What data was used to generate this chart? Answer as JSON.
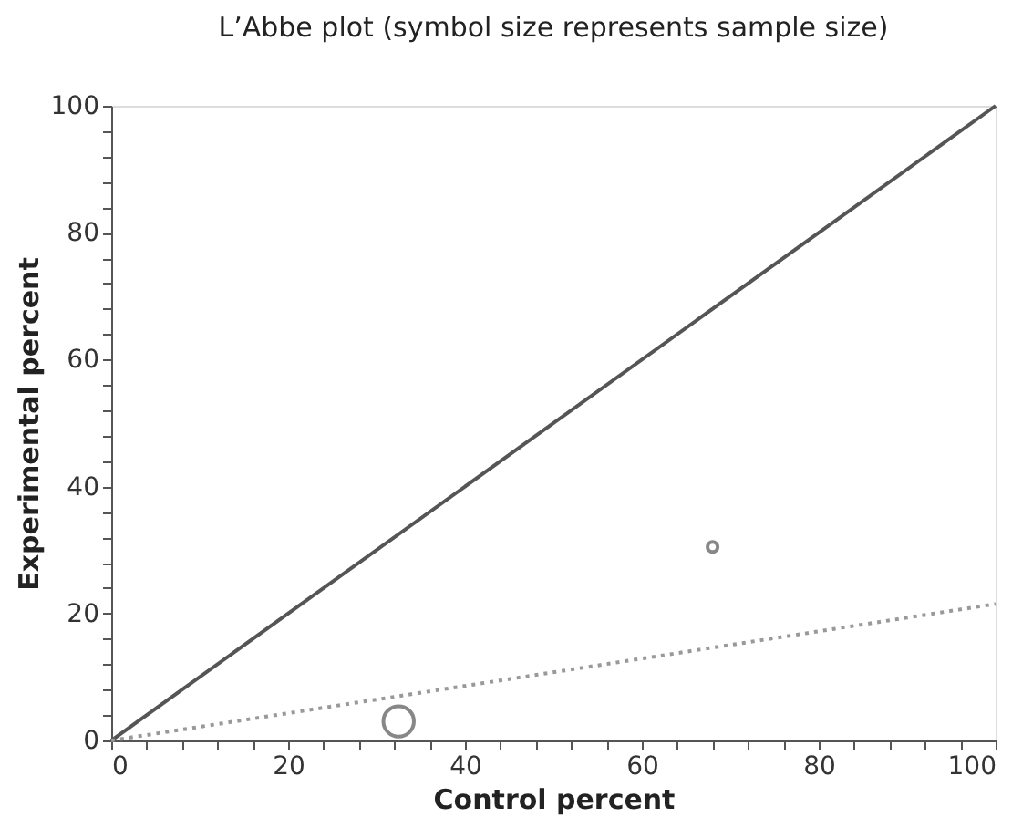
{
  "chart_data": {
    "type": "bubble",
    "title": "L’Abbe plot (symbol size represents sample size)",
    "xlabel": "Control percent",
    "ylabel": "Experimental percent",
    "xlim": [
      0,
      100
    ],
    "ylim": [
      0,
      100
    ],
    "xticks": [
      0,
      {
        "value": 4,
        "label": null
      },
      {
        "value": 8,
        "label": null
      },
      {
        "value": 12,
        "label": null
      },
      {
        "value": 16,
        "label": null
      },
      20,
      {
        "value": 24,
        "label": null
      },
      {
        "value": 28,
        "label": null
      },
      {
        "value": 32,
        "label": null
      },
      {
        "value": 36,
        "label": null
      },
      40,
      {
        "value": 44,
        "label": null
      },
      {
        "value": 48,
        "label": null
      },
      {
        "value": 52,
        "label": null
      },
      {
        "value": 56,
        "label": null
      },
      60,
      {
        "value": 64,
        "label": null
      },
      {
        "value": 68,
        "label": null
      },
      {
        "value": 72,
        "label": null
      },
      {
        "value": 76,
        "label": null
      },
      80,
      {
        "value": 84,
        "label": null
      },
      {
        "value": 88,
        "label": null
      },
      {
        "value": 92,
        "label": null
      },
      {
        "value": 96,
        "label": null
      },
      100
    ],
    "yticks": [
      0,
      {
        "value": 4,
        "label": null
      },
      {
        "value": 8,
        "label": null
      },
      {
        "value": 12,
        "label": null
      },
      {
        "value": 16,
        "label": null
      },
      20,
      {
        "value": 24,
        "label": null
      },
      {
        "value": 28,
        "label": null
      },
      {
        "value": 32,
        "label": null
      },
      {
        "value": 36,
        "label": null
      },
      40,
      {
        "value": 44,
        "label": null
      },
      {
        "value": 48,
        "label": null
      },
      {
        "value": 52,
        "label": null
      },
      {
        "value": 56,
        "label": null
      },
      60,
      {
        "value": 64,
        "label": null
      },
      {
        "value": 68,
        "label": null
      },
      {
        "value": 72,
        "label": null
      },
      {
        "value": 76,
        "label": null
      },
      80,
      {
        "value": 84,
        "label": null
      },
      {
        "value": 88,
        "label": null
      },
      {
        "value": 92,
        "label": null
      },
      {
        "value": 96,
        "label": null
      },
      100
    ],
    "grid": false,
    "legend": false,
    "series": [
      {
        "type": "bubble",
        "color": "#555555",
        "x": [
          32.5,
          68
        ],
        "values": [
          3,
          30.5
        ],
        "sizes": [
          1,
          0.11
        ]
      },
      {
        "type": "line",
        "color": "#555555",
        "line_style": "solid",
        "x": [
          0,
          100
        ],
        "values": [
          0,
          100
        ]
      },
      {
        "type": "line",
        "color": "#999999",
        "line_style": "dotted",
        "x": [
          0,
          100
        ],
        "values": [
          0,
          21.5
        ]
      }
    ]
  }
}
